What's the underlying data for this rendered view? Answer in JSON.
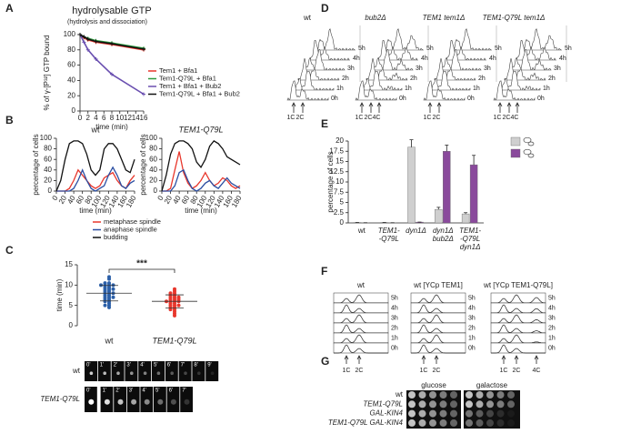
{
  "panel_labels": [
    "A",
    "B",
    "C",
    "D",
    "E",
    "F",
    "G"
  ],
  "chart_data": [
    {
      "type": "line",
      "title": "hydrolysable GTP",
      "subtitle": "(hydrolysis and dissociation)",
      "x_label": "time (min)",
      "y_label": "% of γ-[P³²] GTP bound",
      "x": [
        0,
        1,
        2,
        4,
        8,
        16
      ],
      "xlim": [
        0,
        16
      ],
      "xticks": [
        0,
        2,
        4,
        6,
        8,
        10,
        12,
        14,
        16
      ],
      "ylim": [
        0,
        100
      ],
      "yticks": [
        0,
        20,
        40,
        60,
        80,
        100
      ],
      "legend": "right",
      "markers": true,
      "series": [
        {
          "name": "Tem1 + Bfa1",
          "color": "#e8372c",
          "values": [
            100,
            96,
            93,
            90,
            87,
            80
          ]
        },
        {
          "name": "Tem1-Q79L + Bfa1",
          "color": "#2e9a3e",
          "values": [
            100,
            97,
            95,
            92,
            89,
            82
          ]
        },
        {
          "name": "Tem1 + Bfa1 + Bub2",
          "color": "#6a4fb0",
          "values": [
            100,
            90,
            80,
            68,
            48,
            22
          ]
        },
        {
          "name": "Tem1-Q79L + Bfa1 + Bub2",
          "color": "#111111",
          "values": [
            100,
            97,
            94,
            91,
            88,
            81
          ]
        }
      ]
    },
    {
      "type": "line",
      "title": "wt",
      "x_label": "time (min)",
      "y_label": "percentage of cells",
      "x": [
        0,
        10,
        20,
        30,
        40,
        50,
        60,
        70,
        80,
        90,
        100,
        110,
        120,
        130,
        140,
        150,
        160,
        170,
        180
      ],
      "xlim": [
        0,
        180
      ],
      "xticks": [
        0,
        20,
        40,
        60,
        80,
        100,
        120,
        140,
        160,
        180
      ],
      "ylim": [
        0,
        100
      ],
      "yticks": [
        0,
        20,
        40,
        60,
        80,
        100
      ],
      "legend": "bottom",
      "markers": false,
      "series": [
        {
          "name": "metaphase spindle",
          "color": "#e8372c",
          "values": [
            0,
            0,
            0,
            5,
            20,
            40,
            30,
            20,
            10,
            5,
            10,
            25,
            30,
            35,
            20,
            10,
            5,
            20,
            30
          ]
        },
        {
          "name": "anaphase spindle",
          "color": "#2b4ea2",
          "values": [
            0,
            0,
            0,
            0,
            5,
            20,
            40,
            20,
            5,
            0,
            5,
            10,
            30,
            45,
            30,
            10,
            5,
            15,
            20
          ]
        },
        {
          "name": "budding",
          "color": "#111111",
          "values": [
            0,
            20,
            60,
            90,
            95,
            95,
            90,
            70,
            40,
            30,
            40,
            80,
            90,
            90,
            80,
            60,
            40,
            35,
            60
          ]
        }
      ]
    },
    {
      "type": "line",
      "title": "TEM1-Q79L",
      "x_label": "time (min)",
      "y_label": "percentage of cells",
      "x": [
        0,
        10,
        20,
        30,
        40,
        50,
        60,
        70,
        80,
        90,
        100,
        110,
        120,
        130,
        140,
        150,
        160,
        170,
        180
      ],
      "xlim": [
        0,
        180
      ],
      "xticks": [
        0,
        20,
        40,
        60,
        80,
        100,
        120,
        140,
        160,
        180
      ],
      "ylim": [
        0,
        100
      ],
      "yticks": [
        0,
        20,
        40,
        60,
        80,
        100
      ],
      "markers": false,
      "series": [
        {
          "color": "#e8372c",
          "values": [
            0,
            0,
            5,
            40,
            75,
            35,
            15,
            5,
            10,
            20,
            35,
            20,
            10,
            15,
            25,
            20,
            10,
            5,
            10
          ]
        },
        {
          "color": "#2b4ea2",
          "values": [
            0,
            0,
            0,
            10,
            35,
            40,
            20,
            5,
            0,
            5,
            15,
            20,
            10,
            5,
            15,
            25,
            15,
            10,
            5
          ]
        },
        {
          "color": "#111111",
          "values": [
            0,
            30,
            70,
            90,
            95,
            95,
            90,
            80,
            55,
            45,
            60,
            85,
            95,
            90,
            80,
            65,
            60,
            55,
            50
          ]
        }
      ]
    },
    {
      "type": "strip",
      "y_label": "time (min)",
      "annotation": "***",
      "categories": [
        "wt",
        "TEM1-Q79L"
      ],
      "ylim": [
        0,
        15
      ],
      "yticks": [
        0,
        5,
        10,
        15
      ],
      "groups": [
        {
          "color": "#2b5fa8",
          "mean": 8,
          "sd": 1.9,
          "values": [
            12,
            11.5,
            10.5,
            10.5,
            10,
            10,
            10,
            10,
            9.5,
            9.5,
            9,
            9,
            9,
            8.5,
            8.5,
            8,
            8,
            8,
            7.5,
            7.5,
            7,
            7,
            7,
            6.5,
            6.5,
            6,
            6,
            5.5,
            5,
            5,
            4.5
          ]
        },
        {
          "color": "#e8372c",
          "mean": 6,
          "sd": 1.6,
          "values": [
            9,
            8.5,
            8,
            8,
            7.5,
            7.5,
            7,
            7,
            7,
            6.5,
            6.5,
            6.5,
            6,
            6,
            6,
            6,
            5.5,
            5.5,
            5,
            5,
            5,
            4.5,
            4.5,
            4,
            4,
            3.5,
            3,
            2.5
          ]
        }
      ]
    },
    {
      "type": "bar",
      "y_label": "percentage of cells",
      "categories": [
        [
          "wt"
        ],
        [
          "TEM1-",
          "-Q79L"
        ],
        [
          "dyn1Δ"
        ],
        [
          "dyn1Δ",
          "bub2Δ"
        ],
        [
          "TEM1-",
          "-Q79L",
          "dyn1Δ"
        ]
      ],
      "ylim": [
        0,
        20
      ],
      "yticks": [
        0,
        2.5,
        5,
        7.5,
        10,
        12.5,
        15,
        17.5,
        20
      ],
      "series": [
        {
          "color": "#cfcfcf",
          "values": [
            0.1,
            0.1,
            18.5,
            3.3,
            2.2
          ],
          "errors": [
            0,
            0,
            1.8,
            0.5,
            0.3
          ]
        },
        {
          "color": "#8a4a9c",
          "values": [
            0.05,
            0.05,
            0.2,
            17.5,
            14.2
          ],
          "errors": [
            0,
            0,
            0,
            1.5,
            2.3
          ]
        }
      ]
    }
  ],
  "microscopy": {
    "rows": [
      {
        "label": "wt",
        "frames": [
          "0'",
          "1'",
          "2'",
          "3'",
          "4'",
          "5'",
          "6'",
          "7'",
          "8'",
          "9'"
        ]
      },
      {
        "label": "TEM1-Q79L",
        "frames": [
          "0'",
          "1'",
          "2'",
          "3'",
          "4'",
          "5'",
          "6'",
          "7'"
        ]
      }
    ]
  },
  "flow_d": {
    "times": [
      "5h",
      "4h",
      "3h",
      "2h",
      "1h",
      "0h"
    ],
    "panels": [
      {
        "title": "wt",
        "markers": [
          "1C",
          "2C"
        ]
      },
      {
        "title": "bub2Δ",
        "markers": [
          "1C",
          "2C",
          "4C"
        ]
      },
      {
        "title": "TEM1 tem1Δ",
        "markers": [
          "1C",
          "2C"
        ]
      },
      {
        "title": "TEM1-Q79L tem1Δ",
        "markers": [
          "1C",
          "2C",
          "4C"
        ]
      }
    ]
  },
  "flow_f": {
    "times": [
      "5h",
      "4h",
      "3h",
      "2h",
      "1h",
      "0h"
    ],
    "panels": [
      {
        "title": "wt",
        "markers": [
          "1C",
          "2C"
        ]
      },
      {
        "title": "wt [YCp TEM1]",
        "markers": [
          "1C",
          "2C"
        ]
      },
      {
        "title": "wt [YCp TEM1-Q79L]",
        "markers": [
          "1C",
          "2C",
          "4C"
        ]
      }
    ]
  },
  "spot_assay": {
    "media": [
      "glucose",
      "galactose"
    ],
    "strains": [
      "wt",
      "TEM1-Q79L",
      "GAL-KIN4",
      "TEM1-Q79L GAL-KIN4"
    ]
  }
}
